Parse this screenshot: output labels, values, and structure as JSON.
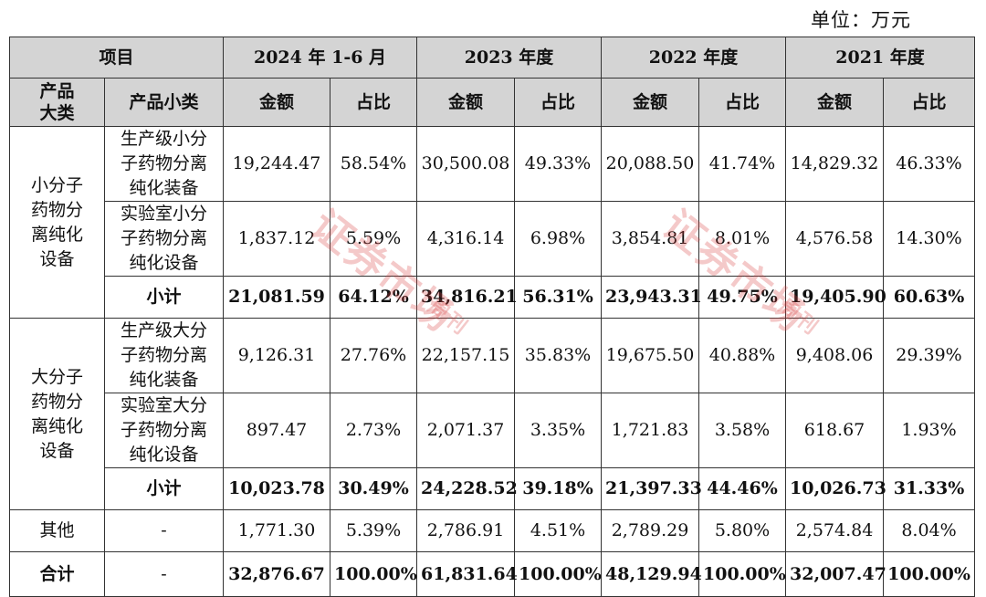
{
  "unit_label": "单位：万元",
  "header": {
    "item": "项目",
    "periods": [
      "2024 年 1-6 月",
      "2023 年度",
      "2022 年度",
      "2021 年度"
    ],
    "major_category": "产品\n大类",
    "minor_category": "产品小类",
    "amount": "金额",
    "ratio": "占比"
  },
  "groups": [
    {
      "name": "小分子\n药物分\n离纯化\n设备",
      "rows": [
        {
          "label": "生产级小分\n子药物分离\n纯化装备",
          "values": [
            "19,244.47",
            "58.54%",
            "30,500.08",
            "49.33%",
            "20,088.50",
            "41.74%",
            "14,829.32",
            "46.33%"
          ]
        },
        {
          "label": "实验室小分\n子药物分离\n纯化设备",
          "values": [
            "1,837.12",
            "5.59%",
            "4,316.14",
            "6.98%",
            "3,854.81",
            "8.01%",
            "4,576.58",
            "14.30%"
          ]
        }
      ],
      "subtotal": {
        "label": "小计",
        "values": [
          "21,081.59",
          "64.12%",
          "34,816.21",
          "56.31%",
          "23,943.31",
          "49.75%",
          "19,405.90",
          "60.63%"
        ]
      }
    },
    {
      "name": "大分子\n药物分\n离纯化\n设备",
      "rows": [
        {
          "label": "生产级大分\n子药物分离\n纯化装备",
          "values": [
            "9,126.31",
            "27.76%",
            "22,157.15",
            "35.83%",
            "19,675.50",
            "40.88%",
            "9,408.06",
            "29.39%"
          ]
        },
        {
          "label": "实验室大分\n子药物分离\n纯化设备",
          "values": [
            "897.47",
            "2.73%",
            "2,071.37",
            "3.35%",
            "1,721.83",
            "3.58%",
            "618.67",
            "1.93%"
          ]
        }
      ],
      "subtotal": {
        "label": "小计",
        "values": [
          "10,023.78",
          "30.49%",
          "24,228.52",
          "39.18%",
          "21,397.33",
          "44.46%",
          "10,026.73",
          "31.33%"
        ]
      }
    }
  ],
  "other": {
    "label": "其他",
    "sub": "-",
    "values": [
      "1,771.30",
      "5.39%",
      "2,786.91",
      "4.51%",
      "2,789.29",
      "5.80%",
      "2,574.84",
      "8.04%"
    ]
  },
  "total": {
    "label": "合计",
    "sub": "-",
    "values": [
      "32,876.67",
      "100.00%",
      "61,831.64",
      "100.00%",
      "48,129.94",
      "100.00%",
      "32,007.47",
      "100.00%"
    ]
  },
  "watermark": {
    "text": "证券市场",
    "sub": "周刊"
  }
}
